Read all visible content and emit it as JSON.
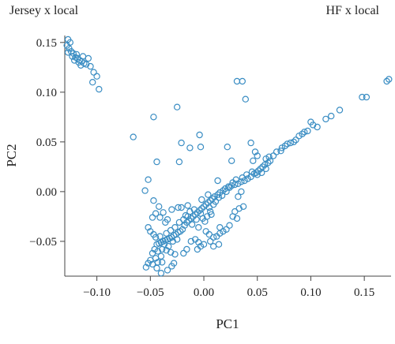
{
  "chart_data": {
    "type": "scatter",
    "title": "",
    "annotations": [
      {
        "text": "Jersey x local",
        "position": "top-left"
      },
      {
        "text": "HF x local",
        "position": "top-right"
      }
    ],
    "xlabel": "PC1",
    "ylabel": "PC2",
    "xlim": [
      -0.13,
      0.175
    ],
    "ylim": [
      -0.085,
      0.157
    ],
    "xticks": [
      -0.1,
      -0.05,
      0.0,
      0.05,
      0.1,
      0.15
    ],
    "xtick_labels": [
      "−0.10",
      "−0.05",
      "0.00",
      "0.05",
      "0.10",
      "0.15"
    ],
    "yticks": [
      -0.05,
      0.0,
      0.05,
      0.1,
      0.15
    ],
    "ytick_labels": [
      "−0.05",
      "0.00",
      "0.05",
      "0.10",
      "0.15"
    ],
    "grid": false,
    "legend": "none",
    "marker": "open-circle",
    "color": "#3a8dc3",
    "points": [
      [
        -0.127,
        0.153
      ],
      [
        -0.125,
        0.15
      ],
      [
        -0.128,
        0.147
      ],
      [
        -0.126,
        0.144
      ],
      [
        -0.124,
        0.141
      ],
      [
        -0.127,
        0.14
      ],
      [
        -0.122,
        0.139
      ],
      [
        -0.119,
        0.138
      ],
      [
        -0.123,
        0.136
      ],
      [
        -0.12,
        0.135
      ],
      [
        -0.118,
        0.134
      ],
      [
        -0.121,
        0.132
      ],
      [
        -0.116,
        0.132
      ],
      [
        -0.113,
        0.136
      ],
      [
        -0.114,
        0.131
      ],
      [
        -0.117,
        0.13
      ],
      [
        -0.112,
        0.129
      ],
      [
        -0.11,
        0.128
      ],
      [
        -0.115,
        0.127
      ],
      [
        -0.108,
        0.134
      ],
      [
        -0.106,
        0.126
      ],
      [
        -0.103,
        0.12
      ],
      [
        -0.1,
        0.116
      ],
      [
        -0.104,
        0.11
      ],
      [
        -0.098,
        0.103
      ],
      [
        0.031,
        0.111
      ],
      [
        0.036,
        0.111
      ],
      [
        0.039,
        0.093
      ],
      [
        0.173,
        0.113
      ],
      [
        0.171,
        0.111
      ],
      [
        0.152,
        0.095
      ],
      [
        0.148,
        0.095
      ],
      [
        0.127,
        0.082
      ],
      [
        0.119,
        0.076
      ],
      [
        0.114,
        0.073
      ],
      [
        0.106,
        0.065
      ],
      [
        0.102,
        0.067
      ],
      [
        0.1,
        0.07
      ],
      [
        0.097,
        0.061
      ],
      [
        0.094,
        0.06
      ],
      [
        0.092,
        0.058
      ],
      [
        0.089,
        0.056
      ],
      [
        0.086,
        0.052
      ],
      [
        0.084,
        0.05
      ],
      [
        0.081,
        0.049
      ],
      [
        0.078,
        0.048
      ],
      [
        0.076,
        0.046
      ],
      [
        0.073,
        0.044
      ],
      [
        0.072,
        0.041
      ],
      [
        0.068,
        0.04
      ],
      [
        0.065,
        0.036
      ],
      [
        0.061,
        0.035
      ],
      [
        0.058,
        0.033
      ],
      [
        -0.066,
        0.055
      ],
      [
        -0.047,
        0.075
      ],
      [
        -0.025,
        0.085
      ],
      [
        -0.013,
        0.044
      ],
      [
        -0.004,
        0.057
      ],
      [
        -0.003,
        0.045
      ],
      [
        -0.021,
        0.049
      ],
      [
        0.022,
        0.045
      ],
      [
        0.044,
        0.049
      ],
      [
        0.048,
        0.04
      ],
      [
        0.05,
        0.036
      ],
      [
        0.046,
        0.031
      ],
      [
        0.026,
        0.031
      ],
      [
        -0.044,
        0.03
      ],
      [
        -0.023,
        0.03
      ],
      [
        -0.055,
        0.001
      ],
      [
        -0.052,
        0.012
      ],
      [
        0.013,
        0.011
      ],
      [
        0.062,
        0.031
      ],
      [
        0.06,
        0.029
      ],
      [
        0.057,
        0.027
      ],
      [
        0.055,
        0.025
      ],
      [
        0.053,
        0.023
      ],
      [
        0.051,
        0.021
      ],
      [
        0.049,
        0.019
      ],
      [
        0.047,
        0.018
      ],
      [
        0.044,
        0.015
      ],
      [
        0.041,
        0.013
      ],
      [
        0.038,
        0.011
      ],
      [
        0.035,
        0.01
      ],
      [
        0.032,
        0.008
      ],
      [
        0.029,
        0.007
      ],
      [
        0.026,
        0.006
      ],
      [
        0.023,
        0.005
      ],
      [
        0.02,
        0.003
      ],
      [
        0.018,
        0.001
      ],
      [
        0.015,
        -0.001
      ],
      [
        0.013,
        -0.003
      ],
      [
        0.01,
        -0.005
      ],
      [
        0.008,
        -0.007
      ],
      [
        0.006,
        -0.009
      ],
      [
        0.004,
        -0.011
      ],
      [
        0.058,
        0.023
      ],
      [
        0.054,
        0.019
      ],
      [
        0.05,
        0.017
      ],
      [
        0.045,
        0.02
      ],
      [
        0.04,
        0.017
      ],
      [
        0.036,
        0.014
      ],
      [
        0.03,
        0.012
      ],
      [
        0.027,
        0.009
      ],
      [
        0.024,
        0.004
      ],
      [
        0.021,
        0.0
      ],
      [
        0.017,
        -0.004
      ],
      [
        0.014,
        -0.006
      ],
      [
        0.011,
        -0.01
      ],
      [
        0.009,
        -0.013
      ],
      [
        0.002,
        -0.013
      ],
      [
        0.0,
        -0.015
      ],
      [
        -0.002,
        -0.017
      ],
      [
        -0.004,
        -0.019
      ],
      [
        -0.006,
        -0.021
      ],
      [
        -0.008,
        -0.023
      ],
      [
        -0.01,
        -0.025
      ],
      [
        -0.012,
        -0.027
      ],
      [
        -0.014,
        -0.029
      ],
      [
        -0.016,
        -0.031
      ],
      [
        -0.003,
        -0.022
      ],
      [
        -0.001,
        -0.027
      ],
      [
        0.003,
        -0.025
      ],
      [
        0.006,
        -0.02
      ],
      [
        0.001,
        -0.03
      ],
      [
        -0.007,
        -0.028
      ],
      [
        -0.011,
        -0.033
      ],
      [
        -0.005,
        -0.036
      ],
      [
        -0.009,
        -0.018
      ],
      [
        -0.013,
        -0.02
      ],
      [
        -0.017,
        -0.024
      ],
      [
        0.005,
        -0.016
      ],
      [
        0.007,
        -0.023
      ],
      [
        -0.002,
        -0.008
      ],
      [
        0.004,
        -0.003
      ],
      [
        -0.015,
        -0.014
      ],
      [
        -0.021,
        -0.016
      ],
      [
        -0.018,
        -0.034
      ],
      [
        -0.02,
        -0.038
      ],
      [
        -0.022,
        -0.04
      ],
      [
        -0.024,
        -0.041
      ],
      [
        -0.026,
        -0.043
      ],
      [
        -0.028,
        -0.044
      ],
      [
        -0.03,
        -0.046
      ],
      [
        -0.032,
        -0.047
      ],
      [
        -0.034,
        -0.048
      ],
      [
        -0.036,
        -0.049
      ],
      [
        -0.038,
        -0.05
      ],
      [
        -0.04,
        -0.051
      ],
      [
        -0.042,
        -0.052
      ],
      [
        -0.044,
        -0.053
      ],
      [
        -0.037,
        -0.053
      ],
      [
        -0.033,
        -0.055
      ],
      [
        -0.029,
        -0.05
      ],
      [
        -0.025,
        -0.048
      ],
      [
        -0.045,
        -0.046
      ],
      [
        -0.05,
        -0.04
      ],
      [
        -0.052,
        -0.036
      ],
      [
        -0.047,
        -0.043
      ],
      [
        -0.041,
        -0.045
      ],
      [
        -0.035,
        -0.042
      ],
      [
        -0.031,
        -0.039
      ],
      [
        -0.027,
        -0.036
      ],
      [
        -0.023,
        -0.031
      ],
      [
        -0.019,
        -0.028
      ],
      [
        -0.015,
        -0.025
      ],
      [
        -0.046,
        -0.058
      ],
      [
        -0.048,
        -0.062
      ],
      [
        -0.043,
        -0.06
      ],
      [
        -0.039,
        -0.058
      ],
      [
        -0.035,
        -0.059
      ],
      [
        -0.031,
        -0.061
      ],
      [
        -0.027,
        -0.063
      ],
      [
        -0.04,
        -0.065
      ],
      [
        -0.045,
        -0.067
      ],
      [
        -0.05,
        -0.069
      ],
      [
        -0.052,
        -0.072
      ],
      [
        -0.054,
        -0.076
      ],
      [
        -0.048,
        -0.073
      ],
      [
        -0.043,
        -0.071
      ],
      [
        -0.039,
        -0.071
      ],
      [
        -0.044,
        -0.077
      ],
      [
        -0.04,
        -0.082
      ],
      [
        -0.034,
        -0.079
      ],
      [
        -0.03,
        -0.075
      ],
      [
        -0.028,
        -0.072
      ],
      [
        -0.019,
        -0.062
      ],
      [
        -0.016,
        -0.058
      ],
      [
        -0.047,
        -0.009
      ],
      [
        -0.042,
        -0.015
      ],
      [
        -0.045,
        -0.022
      ],
      [
        -0.048,
        -0.026
      ],
      [
        -0.041,
        -0.026
      ],
      [
        -0.038,
        -0.021
      ],
      [
        -0.024,
        -0.016
      ],
      [
        -0.03,
        -0.018
      ],
      [
        -0.034,
        -0.028
      ],
      [
        -0.036,
        -0.031
      ],
      [
        0.002,
        -0.04
      ],
      [
        0.005,
        -0.043
      ],
      [
        0.009,
        -0.046
      ],
      [
        0.012,
        -0.045
      ],
      [
        0.015,
        -0.042
      ],
      [
        0.018,
        -0.04
      ],
      [
        0.021,
        -0.038
      ],
      [
        0.024,
        -0.034
      ],
      [
        0.015,
        -0.036
      ],
      [
        0.006,
        -0.05
      ],
      [
        0.0,
        -0.053
      ],
      [
        -0.003,
        -0.055
      ],
      [
        -0.005,
        -0.051
      ],
      [
        -0.008,
        -0.048
      ],
      [
        -0.012,
        -0.05
      ],
      [
        -0.006,
        -0.058
      ],
      [
        0.009,
        -0.055
      ],
      [
        0.014,
        -0.053
      ],
      [
        0.027,
        -0.025
      ],
      [
        0.029,
        -0.02
      ],
      [
        0.033,
        -0.017
      ],
      [
        0.037,
        -0.015
      ],
      [
        0.032,
        -0.005
      ],
      [
        0.035,
        0.0
      ],
      [
        0.031,
        -0.027
      ]
    ]
  }
}
